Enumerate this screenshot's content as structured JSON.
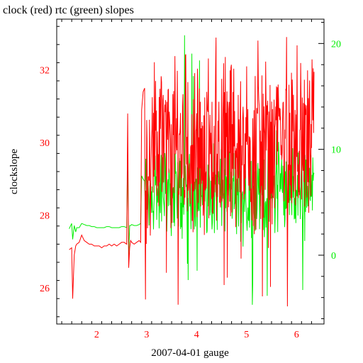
{
  "chart_data": {
    "type": "line",
    "title": "clock (red) rtc (green) slopes",
    "xlabel": "2007-04-01 gauge",
    "ylabel": "clockslope",
    "xlim": [
      1.2,
      6.55
    ],
    "ylim_left": [
      25.0,
      33.4
    ],
    "ylim_right": [
      -6.5,
      22.3
    ],
    "x_ticks": [
      2,
      3,
      4,
      5,
      6
    ],
    "x_tick_labels": [
      "2",
      "3",
      "4",
      "5",
      "6"
    ],
    "y_left_ticks": [
      26,
      28,
      30,
      32
    ],
    "y_left_tick_labels": [
      "26",
      "28",
      "30",
      "32"
    ],
    "y_right_ticks": [
      0,
      10,
      20
    ],
    "y_right_tick_labels": [
      "0",
      "10",
      "20"
    ],
    "grid": false,
    "colors": {
      "clock": "#ff0000",
      "rtc": "#00ee00",
      "axis": "#000000"
    },
    "series": [
      {
        "name": "clock",
        "axis": "left",
        "color": "#ff0000",
        "x": [
          1.45,
          1.5,
          1.52,
          1.55,
          1.58,
          1.6,
          1.65,
          1.7,
          1.75,
          1.8,
          1.85,
          1.9,
          1.95,
          2.0,
          2.05,
          2.1,
          2.15,
          2.2,
          2.25,
          2.3,
          2.35,
          2.4,
          2.45,
          2.5,
          2.55,
          2.6,
          2.62,
          2.64,
          2.66,
          2.68,
          2.7,
          2.75,
          2.8,
          2.85,
          2.88,
          2.9,
          2.93,
          2.96
        ],
        "y": [
          27.05,
          27.1,
          25.7,
          26.9,
          27.15,
          27.2,
          27.25,
          27.45,
          27.3,
          27.25,
          27.2,
          27.2,
          27.15,
          27.15,
          27.15,
          27.1,
          27.15,
          27.15,
          27.2,
          27.15,
          27.2,
          27.15,
          27.2,
          27.25,
          27.25,
          27.2,
          30.8,
          26.55,
          27.1,
          27.3,
          27.25,
          27.2,
          27.25,
          27.3,
          27.25,
          30.9,
          31.4,
          31.5
        ]
      },
      {
        "name": "rtc",
        "axis": "right",
        "color": "#00ee00",
        "x": [
          1.45,
          1.5,
          1.52,
          1.55,
          1.58,
          1.6,
          1.65,
          1.7,
          1.75,
          1.8,
          1.85,
          1.9,
          1.95,
          2.0,
          2.05,
          2.1,
          2.15,
          2.2,
          2.25,
          2.3,
          2.35,
          2.4,
          2.45,
          2.5,
          2.55,
          2.6,
          2.62,
          2.64,
          2.66,
          2.68,
          2.7,
          2.75,
          2.8,
          2.85,
          2.88,
          2.9,
          2.93,
          2.96
        ],
        "y": [
          2.5,
          3.0,
          1.5,
          2.8,
          2.2,
          2.6,
          2.6,
          3.0,
          2.9,
          2.8,
          2.8,
          2.7,
          2.7,
          2.6,
          2.6,
          2.6,
          2.6,
          2.7,
          2.7,
          2.6,
          2.6,
          2.6,
          2.6,
          2.7,
          2.7,
          2.6,
          9.8,
          0.0,
          2.8,
          2.8,
          2.9,
          2.8,
          2.8,
          2.9,
          3.0,
          7.5,
          7.2,
          7.0
        ]
      }
    ],
    "noisy_region": {
      "x_range": [
        2.96,
        6.35
      ],
      "clock_mean": 29.9,
      "clock_spread": [
        25.4,
        33.0
      ],
      "rtc_mean": 6.0,
      "rtc_spread": [
        -5.0,
        21.0
      ]
    }
  }
}
